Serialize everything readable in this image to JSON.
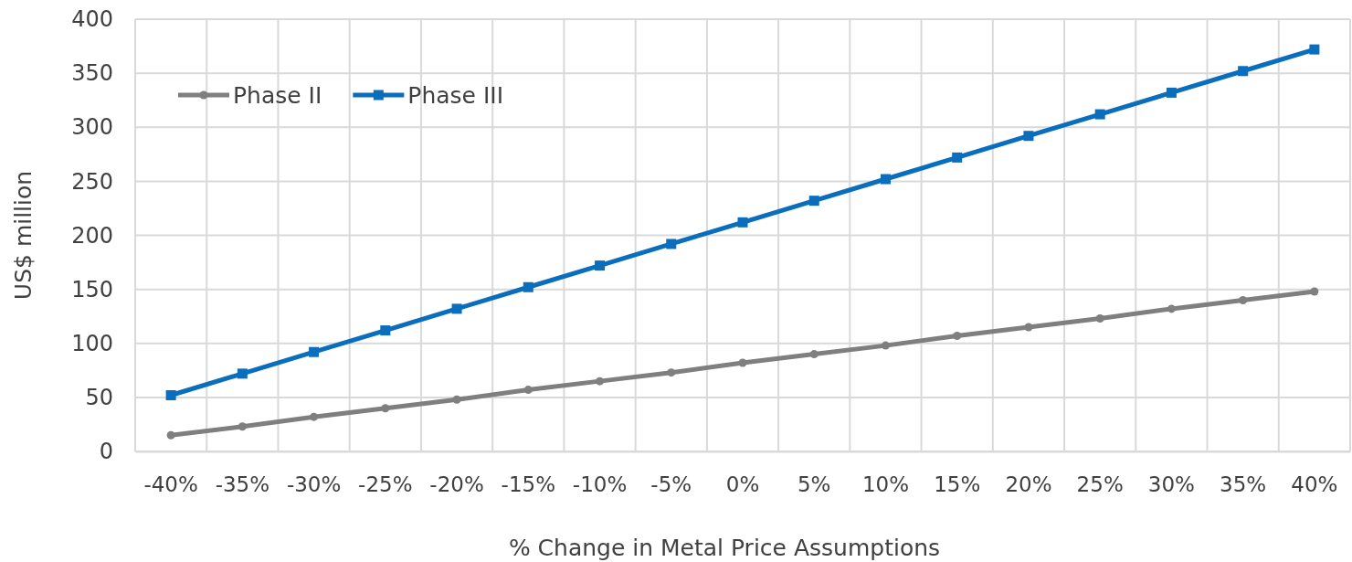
{
  "chart_data": {
    "type": "line",
    "xlabel": "% Change in Metal Price Assumptions",
    "ylabel": "US$ million",
    "categories": [
      "-40%",
      "-35%",
      "-30%",
      "-25%",
      "-20%",
      "-15%",
      "-10%",
      "-5%",
      "0%",
      "5%",
      "10%",
      "15%",
      "20%",
      "25%",
      "30%",
      "35%",
      "40%"
    ],
    "series": [
      {
        "name": "Phase II",
        "color": "#7f7f7f",
        "marker": "circle",
        "values": [
          15,
          23,
          32,
          40,
          48,
          57,
          65,
          73,
          82,
          90,
          98,
          107,
          115,
          123,
          132,
          140,
          148
        ]
      },
      {
        "name": "Phase III",
        "color": "#0a6ebd",
        "marker": "square",
        "values": [
          52,
          72,
          92,
          112,
          132,
          152,
          172,
          192,
          212,
          232,
          252,
          272,
          292,
          312,
          332,
          352,
          372
        ]
      }
    ],
    "ylim": [
      0,
      400
    ],
    "yticks": [
      0,
      50,
      100,
      150,
      200,
      250,
      300,
      350,
      400
    ],
    "grid": true,
    "legend": "top left"
  }
}
